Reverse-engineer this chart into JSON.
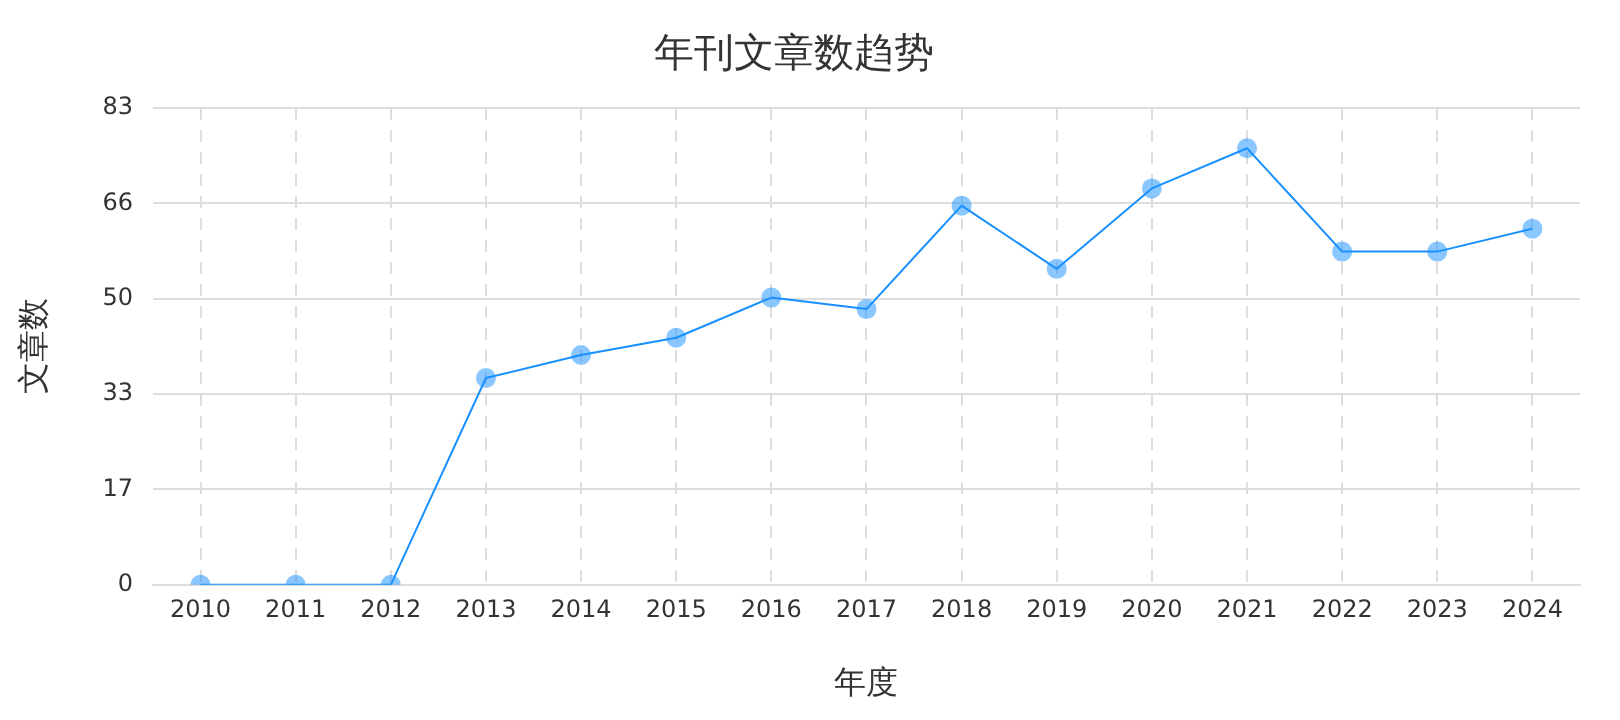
{
  "chart_data": {
    "type": "line",
    "title": "年刊文章数趋势",
    "xlabel": "年度",
    "ylabel": "文章数",
    "categories": [
      "2010",
      "2011",
      "2012",
      "2013",
      "2014",
      "2015",
      "2016",
      "2017",
      "2018",
      "2019",
      "2020",
      "2021",
      "2022",
      "2023",
      "2024"
    ],
    "series": [
      {
        "color": "#1890ff",
        "values": [
          0,
          0,
          0,
          36,
          40,
          43,
          50,
          48,
          66,
          55,
          69,
          76,
          58,
          58,
          62
        ]
      }
    ],
    "ylim": [
      0,
      83
    ],
    "yticks": [
      0,
      {
        "value": 16.6,
        "label": "17"
      },
      {
        "value": 33.2,
        "label": "33"
      },
      {
        "value": 49.8,
        "label": "50"
      },
      {
        "value": 66.4,
        "label": "66"
      },
      83
    ],
    "grid": true,
    "marker": "circle",
    "line_style": "solid",
    "legend": false
  }
}
